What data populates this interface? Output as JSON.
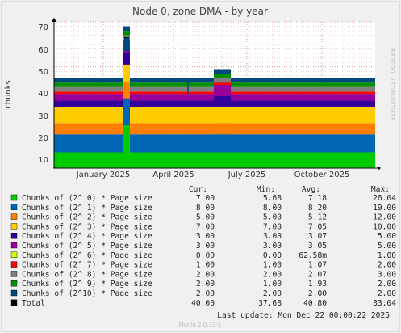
{
  "chart_data": {
    "type": "area",
    "title": "Node 0, zone DMA - by year",
    "ylabel": "chunks",
    "side_text": "RRDTOOL / TOBI OETIKER",
    "footer": "Munin 2.0.33-1",
    "last_update": "Last update:  Mon Dec 22 00:00:22 2025",
    "ylim": [
      5,
      70
    ],
    "yticks": [
      10,
      20,
      30,
      40,
      50,
      60,
      70
    ],
    "y_tick_labels": [
      "10",
      "20",
      "30",
      "40",
      "50",
      "60",
      "70"
    ],
    "x_tick_labels": [
      "January 2025",
      "April 2025",
      "July 2025",
      "October 2025"
    ],
    "columns": [
      "Cur:",
      "Min:",
      "Avg:",
      "Max:"
    ],
    "series": [
      {
        "name": "Chunks of (2^ 0) * Page size",
        "color": "#00cc00",
        "cur": "7.00",
        "min": "5.68",
        "avg": "7.18",
        "max": "26.04"
      },
      {
        "name": "Chunks of (2^ 1) * Page size",
        "color": "#0066b3",
        "cur": "8.00",
        "min": "8.00",
        "avg": "8.20",
        "max": "19.00"
      },
      {
        "name": "Chunks of (2^ 2) * Page size",
        "color": "#ff8000",
        "cur": "5.00",
        "min": "5.00",
        "avg": "5.12",
        "max": "12.00"
      },
      {
        "name": "Chunks of (2^ 3) * Page size",
        "color": "#ffcc00",
        "cur": "7.00",
        "min": "7.00",
        "avg": "7.05",
        "max": "10.00"
      },
      {
        "name": "Chunks of (2^ 4) * Page size",
        "color": "#330099",
        "cur": "3.00",
        "min": "3.00",
        "avg": "3.07",
        "max": "5.00"
      },
      {
        "name": "Chunks of (2^ 5) * Page size",
        "color": "#990099",
        "cur": "3.00",
        "min": "3.00",
        "avg": "3.05",
        "max": "5.00"
      },
      {
        "name": "Chunks of (2^ 6) * Page size",
        "color": "#ccff00",
        "cur": "0.00",
        "min": "0.00",
        "avg": "62.58m",
        "max": "1.00"
      },
      {
        "name": "Chunks of (2^ 7) * Page size",
        "color": "#ff0000",
        "cur": "1.00",
        "min": "1.00",
        "avg": "1.07",
        "max": "2.00"
      },
      {
        "name": "Chunks of (2^ 8) * Page size",
        "color": "#808080",
        "cur": "2.00",
        "min": "2.00",
        "avg": "2.07",
        "max": "3.00"
      },
      {
        "name": "Chunks of (2^ 9) * Page size",
        "color": "#008f00",
        "cur": "2.00",
        "min": "1.00",
        "avg": "1.93",
        "max": "2.00"
      },
      {
        "name": "Chunks of (2^10) * Page size",
        "color": "#00487d",
        "cur": "2.00",
        "min": "2.00",
        "avg": "2.00",
        "max": "2.00"
      },
      {
        "name": "Total",
        "color": "#000000",
        "cur": "40.00",
        "min": "37.68",
        "avg": "40.80",
        "max": "83.04"
      }
    ]
  }
}
